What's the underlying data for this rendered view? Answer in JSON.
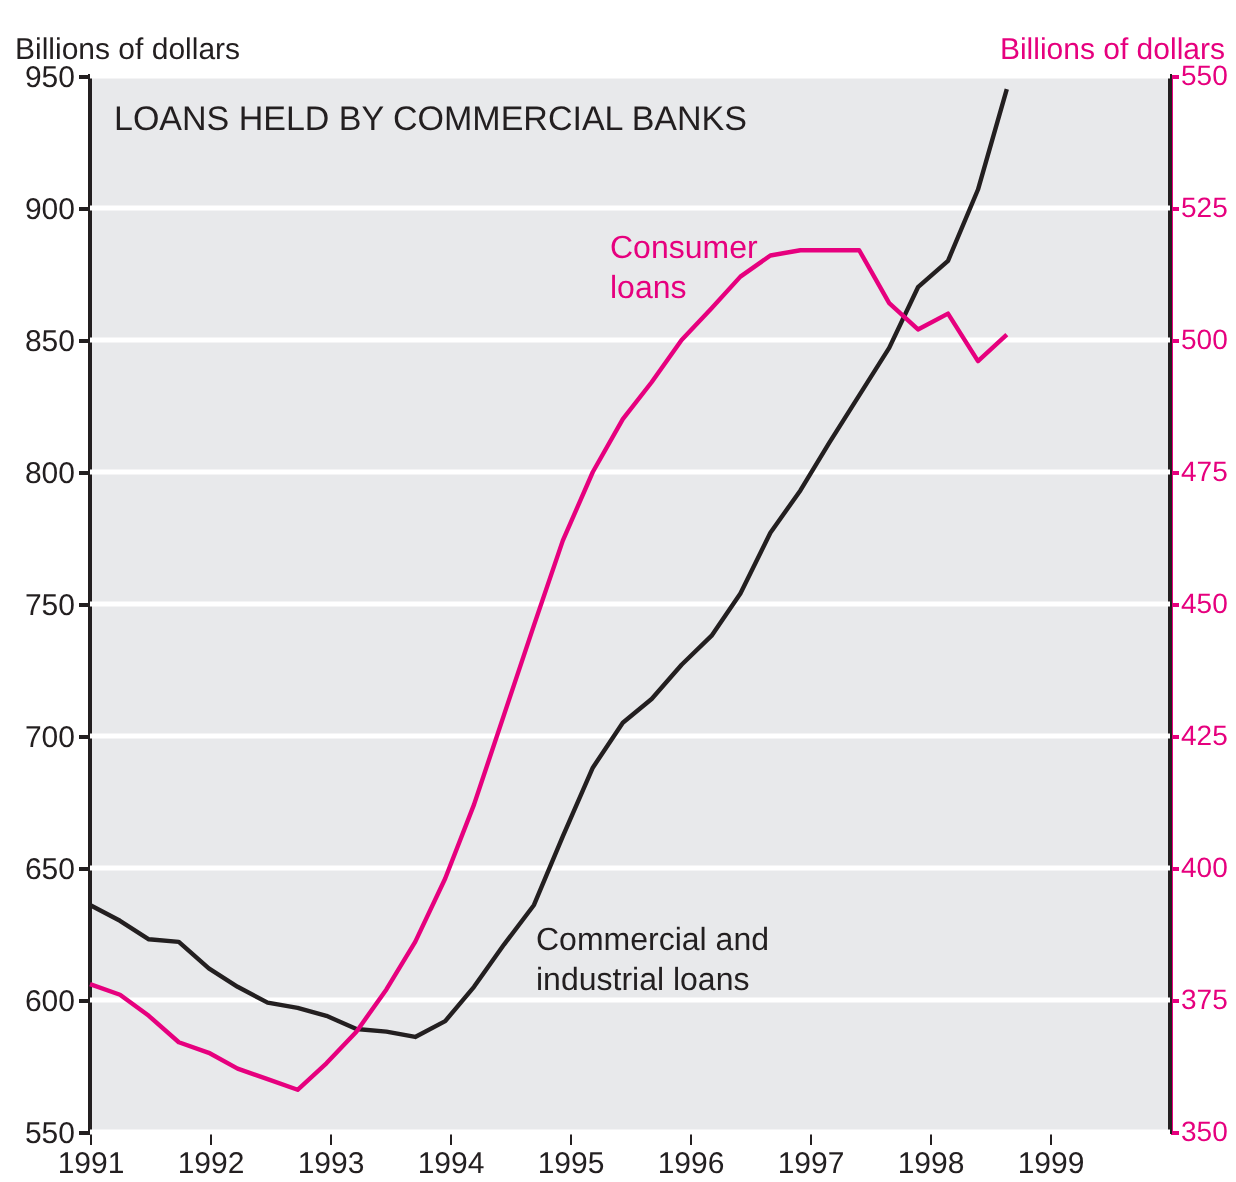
{
  "chart_data": {
    "type": "line",
    "title": "LOANS HELD BY COMMERCIAL BANKS",
    "ylabel": "Billions of dollars",
    "y2label": "Billions of dollars",
    "x": [
      1991.0,
      1991.25,
      1991.49,
      1991.74,
      1991.99,
      1992.23,
      1992.48,
      1992.73,
      1992.97,
      1993.22,
      1993.47,
      1993.71,
      1993.96,
      1994.2,
      1994.45,
      1994.7,
      1994.94,
      1995.19,
      1995.44,
      1995.68,
      1995.93,
      1996.18,
      1996.42,
      1996.67,
      1996.92,
      1997.16,
      1997.41,
      1997.66,
      1997.9,
      1998.15,
      1998.4,
      1998.64
    ],
    "series": [
      {
        "name": "Commercial and industrial loans",
        "color": "#231f20",
        "values": [
          636,
          630,
          623,
          622,
          612,
          605,
          599,
          597,
          594,
          589,
          588,
          586,
          592,
          605,
          621,
          636,
          662,
          688,
          705,
          714,
          727,
          738,
          754,
          777,
          793,
          811,
          829,
          847,
          870,
          880,
          907,
          945
        ]
      },
      {
        "name": "Consumer loans",
        "color": "#e6007e",
        "axis": "y2",
        "values": [
          378,
          376,
          372,
          367,
          365,
          362,
          360,
          358,
          363,
          369,
          377,
          386,
          398,
          412,
          429,
          446,
          462,
          475,
          485,
          492,
          500,
          506,
          512,
          516,
          517,
          517,
          517,
          507,
          502,
          505,
          496,
          501
        ]
      }
    ],
    "xlim": [
      1991,
      2000
    ],
    "xticks": [
      1991,
      1992,
      1993,
      1994,
      1995,
      1996,
      1997,
      1998,
      1999
    ],
    "ylim": [
      550,
      950
    ],
    "yticks": [
      550,
      600,
      650,
      700,
      750,
      800,
      850,
      900,
      950
    ],
    "y2lim": [
      350,
      550
    ],
    "y2ticks": [
      350,
      375,
      400,
      425,
      450,
      475,
      500,
      525,
      550
    ],
    "grid": "y"
  }
}
